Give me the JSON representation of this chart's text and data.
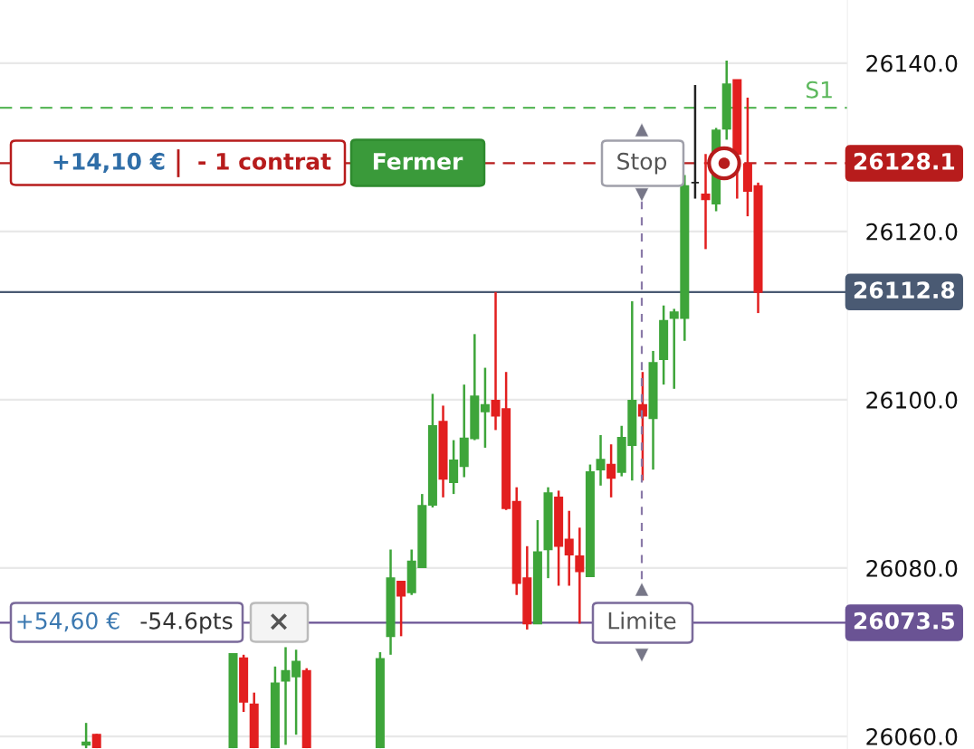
{
  "chart_data": {
    "type": "candlestick",
    "categories": [
      null,
      null,
      null,
      null,
      null,
      null,
      null,
      null,
      null,
      null,
      null,
      null,
      null,
      null,
      null,
      null,
      null,
      null,
      null,
      null,
      null,
      null,
      null,
      null,
      null,
      null,
      null,
      null,
      null,
      null,
      null,
      null,
      null,
      null,
      null,
      null,
      null,
      null,
      null,
      null,
      null,
      null,
      null,
      null,
      null,
      null,
      null,
      null,
      null,
      null,
      null,
      null,
      null,
      null,
      null,
      null,
      null,
      null,
      null,
      null,
      null,
      null,
      null,
      null,
      null
    ],
    "ohlc": [
      [
        26059.0,
        26061.6,
        26058.6,
        26059.3
      ],
      [
        26060.2,
        26060.3,
        26058.6,
        26058.7
      ],
      null,
      null,
      null,
      null,
      null,
      null,
      null,
      null,
      null,
      null,
      null,
      null,
      [
        26058.7,
        26069.8,
        26058.6,
        26069.8
      ],
      [
        26069.3,
        26069.7,
        26062.9,
        26064.1
      ],
      [
        26063.8,
        26065.2,
        26058.6,
        26058.7
      ],
      null,
      [
        26058.7,
        26068.3,
        26058.6,
        26066.3
      ],
      [
        26066.6,
        26070.6,
        26059.0,
        26067.8
      ],
      [
        26067.1,
        26070.3,
        26060.2,
        26068.9
      ],
      [
        26067.8,
        26068.1,
        26058.6,
        26058.7
      ],
      null,
      null,
      null,
      null,
      null,
      null,
      [
        26058.7,
        26070.0,
        26058.6,
        26069.2
      ],
      [
        26071.9,
        26082.2,
        26069.7,
        26078.8
      ],
      [
        26078.4,
        26078.4,
        26071.9,
        26076.7
      ],
      [
        26077.1,
        26082.2,
        26076.8,
        26080.8
      ],
      [
        26080.1,
        26088.8,
        26080.1,
        26087.4
      ],
      [
        26087.5,
        26100.7,
        26087.2,
        26096.9
      ],
      [
        26097.4,
        26099.3,
        26088.4,
        26090.6
      ],
      [
        26090.2,
        26095.2,
        26088.8,
        26092.8
      ],
      [
        26092.1,
        26101.8,
        26090.8,
        26095.4
      ],
      [
        26095.4,
        26107.8,
        26095.2,
        26100.4
      ],
      [
        26098.6,
        26103.8,
        26094.3,
        26099.4
      ],
      [
        26099.9,
        26112.8,
        26096.4,
        26098.1
      ],
      [
        26098.9,
        26103.3,
        26086.9,
        26087.1
      ],
      [
        26087.9,
        26089.6,
        26076.8,
        26078.2
      ],
      [
        26078.8,
        26082.6,
        26072.7,
        26073.4
      ],
      [
        26073.4,
        26085.7,
        26073.4,
        26081.9
      ],
      [
        26082.2,
        26089.6,
        26078.8,
        26088.9
      ],
      [
        26088.4,
        26089.2,
        26077.9,
        26082.6
      ],
      [
        26083.4,
        26086.8,
        26077.9,
        26081.6
      ],
      [
        26081.4,
        26084.8,
        26073.4,
        26079.6
      ],
      [
        26079.0,
        26092.3,
        26079.0,
        26091.4
      ],
      [
        26091.7,
        26095.8,
        26089.8,
        26092.9
      ],
      [
        26092.3,
        26094.7,
        26088.4,
        26090.7
      ],
      [
        26091.4,
        26096.9,
        26090.9,
        26095.5
      ],
      [
        26094.6,
        26111.7,
        26090.4,
        26099.9
      ],
      [
        26099.4,
        26103.3,
        26090.4,
        26098.1
      ],
      [
        26097.8,
        26105.8,
        26091.7,
        26104.4
      ],
      [
        26104.8,
        26111.2,
        26101.8,
        26109.4
      ],
      [
        26109.7,
        26110.8,
        26101.3,
        26110.4
      ],
      [
        26109.7,
        26126.7,
        26107.0,
        26125.4
      ],
      [
        26125.8,
        26137.4,
        26123.9,
        26125.8
      ],
      [
        26124.4,
        26129.2,
        26117.9,
        26123.8
      ],
      [
        26123.3,
        26132.3,
        26122.4,
        26132.0
      ],
      [
        26132.2,
        26140.3,
        26130.9,
        26137.5
      ],
      [
        26138.0,
        26138.0,
        26123.9,
        26129.2
      ],
      [
        26128.0,
        26135.9,
        26121.8,
        26124.8
      ],
      [
        26125.4,
        26125.8,
        26110.3,
        26112.8
      ]
    ],
    "colors": [
      "#3ea53a",
      "#e21f1f",
      null,
      null,
      null,
      null,
      null,
      null,
      null,
      null,
      null,
      null,
      null,
      null,
      "#3ea53a",
      "#e21f1f",
      "#e21f1f",
      null,
      "#3ea53a",
      "#3ea53a",
      "#3ea53a",
      "#e21f1f",
      null,
      null,
      null,
      null,
      null,
      null,
      "#3ea53a",
      "#3ea53a",
      "#e21f1f",
      "#3ea53a",
      "#3ea53a",
      "#3ea53a",
      "#e21f1f",
      "#3ea53a",
      "#3ea53a",
      "#3ea53a",
      "#3ea53a",
      "#e21f1f",
      "#e21f1f",
      "#e21f1f",
      "#e21f1f",
      "#3ea53a",
      "#3ea53a",
      "#e21f1f",
      "#e21f1f",
      "#e21f1f",
      "#3ea53a",
      "#3ea53a",
      "#e21f1f",
      "#3ea53a",
      "#3ea53a",
      "#e21f1f",
      "#3ea53a",
      "#3ea53a",
      "#3ea53a",
      "#3ea53a",
      "#222222",
      "#e21f1f",
      "#3ea53a",
      "#3ea53a",
      "#e21f1f",
      "#e21f1f",
      "#e21f1f"
    ],
    "ylim": [
      26058.5,
      26147.5
    ],
    "yticks": [
      {
        "value": 26060,
        "label": "26060.0"
      },
      {
        "value": 26080,
        "label": "26080.0"
      },
      {
        "value": 26100,
        "label": "26100.0"
      },
      {
        "value": 26120,
        "label": "26120.0"
      },
      {
        "value": 26140,
        "label": "26140.0"
      }
    ],
    "grid": "y",
    "ref_lines": [
      {
        "axis": "y",
        "value": 26134.7,
        "label": "S1",
        "color": "#5cb85c",
        "line_style": "dashed"
      },
      {
        "axis": "y",
        "value": 26128.1,
        "label": "26128.1",
        "color": "#b71c1c",
        "line_style": "dashed"
      },
      {
        "axis": "y",
        "value": 26112.8,
        "label": "26112.8",
        "color": "#4a5a73",
        "line_style": "solid"
      },
      {
        "axis": "y",
        "value": 26073.5,
        "label": "26073.5",
        "color": "#6a5394",
        "line_style": "solid"
      }
    ],
    "annotations": [
      "+14,10 €",
      "- 1 contrat",
      "Fermer",
      "Stop",
      "+54,60 €",
      "-54.6pts",
      "×",
      "Limite"
    ]
  }
}
